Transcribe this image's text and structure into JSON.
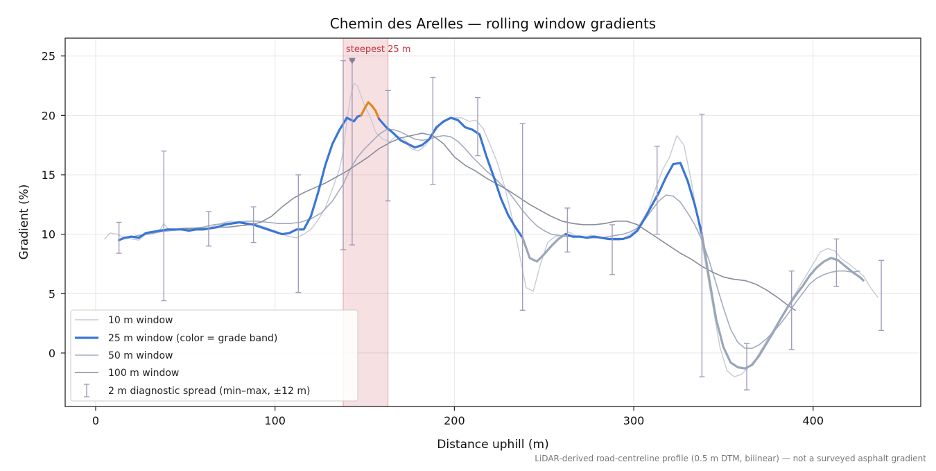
{
  "chart_data": {
    "type": "line",
    "title": "Chemin des Arelles — rolling window gradients",
    "xlabel": "Distance uphill (m)",
    "ylabel": "Gradient (%)",
    "xlim": [
      -17,
      460
    ],
    "ylim": [
      -4.5,
      26.5
    ],
    "xticks": [
      0,
      100,
      200,
      300,
      400
    ],
    "yticks": [
      0,
      5,
      10,
      15,
      20,
      25
    ],
    "grid": true,
    "legend_position": "lower-left",
    "footnote": "LiDAR-derived road-centreline profile (0.5 m DTM, bilinear) — not a surveyed asphalt gradient",
    "annotation": {
      "label": "steepest 25 m",
      "marker_x": 143,
      "marker_y": 24.6,
      "band_x": [
        138,
        163
      ],
      "color": "#c8323c"
    },
    "legend": [
      {
        "key": "w10",
        "label": "10 m window"
      },
      {
        "key": "w25",
        "label": "25 m window (color = grade band)"
      },
      {
        "key": "w50",
        "label": "50 m window"
      },
      {
        "key": "w100",
        "label": "100 m window"
      },
      {
        "key": "spread",
        "label": "2 m diagnostic spread (min–max, ±12 m)"
      }
    ],
    "series": [
      {
        "key": "w10",
        "name": "10 m window",
        "color": "#c5cad5",
        "x": [
          5,
          8,
          12,
          16,
          20,
          24,
          28,
          32,
          36,
          38,
          40,
          44,
          48,
          52,
          56,
          60,
          64,
          68,
          72,
          76,
          80,
          84,
          88,
          92,
          96,
          100,
          104,
          108,
          112,
          116,
          120,
          124,
          128,
          132,
          136,
          138,
          140,
          142,
          144,
          146,
          148,
          150,
          152,
          154,
          156,
          160,
          164,
          168,
          172,
          176,
          180,
          184,
          188,
          192,
          196,
          200,
          204,
          208,
          212,
          216,
          220,
          224,
          228,
          232,
          236,
          240,
          244,
          248,
          252,
          256,
          260,
          264,
          268,
          272,
          276,
          280,
          284,
          288,
          292,
          296,
          300,
          304,
          308,
          312,
          316,
          320,
          324,
          328,
          332,
          336,
          340,
          344,
          348,
          352,
          356,
          360,
          364,
          368,
          372,
          376,
          380,
          384,
          388,
          392,
          396,
          400,
          404,
          408,
          412,
          416,
          420,
          424,
          428,
          432,
          436
        ],
        "y": [
          9.6,
          10.1,
          10.0,
          9.7,
          9.6,
          9.5,
          10.0,
          10.2,
          10.4,
          10.9,
          10.5,
          10.3,
          10.5,
          10.4,
          10.5,
          10.4,
          10.6,
          10.8,
          11.0,
          11.1,
          11.0,
          10.8,
          10.9,
          10.7,
          10.5,
          10.2,
          10.0,
          9.8,
          9.7,
          10.0,
          10.4,
          11.2,
          12.2,
          13.8,
          15.5,
          17.0,
          19.5,
          21.5,
          22.7,
          22.5,
          21.6,
          20.8,
          20.2,
          19.5,
          18.6,
          18.0,
          17.8,
          18.3,
          18.0,
          17.2,
          17.0,
          17.5,
          18.4,
          19.2,
          19.6,
          19.8,
          19.8,
          19.5,
          19.6,
          18.9,
          17.5,
          16.0,
          14.0,
          11.5,
          8.5,
          5.5,
          5.2,
          7.5,
          9.3,
          9.8,
          9.9,
          10.2,
          9.8,
          9.7,
          9.9,
          9.8,
          9.6,
          9.5,
          9.5,
          9.8,
          10.2,
          11.0,
          12.0,
          13.8,
          15.4,
          16.5,
          18.3,
          17.5,
          14.5,
          11.0,
          7.5,
          4.0,
          0.5,
          -1.5,
          -2.0,
          -1.8,
          -1.2,
          -0.5,
          0.5,
          1.5,
          2.5,
          3.5,
          4.5,
          5.5,
          6.5,
          7.5,
          8.5,
          8.8,
          8.6,
          7.9,
          7.5,
          7.0,
          6.5,
          5.5,
          4.7
        ]
      },
      {
        "key": "w50",
        "name": "50 m window",
        "color": "#a2abbf",
        "x": [
          13,
          18,
          24,
          30,
          36,
          42,
          48,
          54,
          60,
          66,
          72,
          78,
          84,
          90,
          96,
          102,
          108,
          114,
          120,
          126,
          132,
          138,
          142,
          146,
          150,
          154,
          158,
          162,
          166,
          170,
          174,
          178,
          182,
          186,
          190,
          194,
          198,
          202,
          206,
          210,
          214,
          218,
          222,
          226,
          230,
          234,
          238,
          242,
          246,
          250,
          254,
          258,
          262,
          266,
          270,
          274,
          278,
          282,
          286,
          290,
          294,
          298,
          302,
          306,
          310,
          314,
          318,
          322,
          326,
          330,
          334,
          338,
          342,
          346,
          350,
          354,
          358,
          362,
          366,
          370,
          374,
          378,
          382,
          386,
          390,
          394,
          398,
          402,
          406,
          410,
          414,
          418,
          422,
          426
        ],
        "y": [
          9.5,
          9.7,
          9.9,
          10.0,
          10.2,
          10.3,
          10.4,
          10.5,
          10.6,
          10.8,
          10.9,
          11.0,
          11.1,
          11.1,
          11.0,
          10.9,
          10.9,
          11.0,
          11.3,
          11.8,
          12.8,
          14.2,
          15.5,
          16.5,
          17.2,
          17.8,
          18.4,
          18.8,
          18.8,
          18.6,
          18.3,
          18.0,
          17.9,
          18.0,
          18.2,
          18.3,
          18.2,
          17.8,
          17.2,
          16.5,
          15.9,
          15.3,
          14.8,
          14.2,
          13.6,
          12.8,
          12.0,
          11.3,
          10.7,
          10.3,
          10.0,
          9.9,
          9.8,
          9.8,
          9.8,
          9.7,
          9.7,
          9.7,
          9.8,
          9.9,
          10.0,
          10.2,
          10.5,
          11.2,
          12.0,
          12.8,
          13.3,
          13.2,
          12.7,
          11.8,
          10.8,
          9.5,
          7.8,
          5.8,
          3.8,
          2.0,
          0.9,
          0.4,
          0.4,
          0.7,
          1.2,
          1.8,
          2.5,
          3.3,
          4.2,
          5.0,
          5.8,
          6.3,
          6.6,
          6.8,
          6.9,
          6.9,
          6.8,
          6.9
        ]
      },
      {
        "key": "w100",
        "name": "100 m window",
        "color": "#868c9a",
        "x": [
          38,
          44,
          50,
          56,
          62,
          68,
          74,
          80,
          86,
          92,
          98,
          104,
          110,
          116,
          122,
          128,
          134,
          140,
          146,
          152,
          158,
          164,
          170,
          176,
          182,
          188,
          194,
          200,
          206,
          212,
          218,
          224,
          230,
          236,
          242,
          248,
          254,
          260,
          266,
          272,
          278,
          284,
          290,
          296,
          302,
          308,
          314,
          320,
          326,
          332,
          338,
          344,
          350,
          356,
          362,
          368,
          374,
          380,
          386,
          390
        ],
        "y": [
          10.4,
          10.4,
          10.5,
          10.5,
          10.5,
          10.6,
          10.6,
          10.7,
          10.8,
          11.0,
          11.5,
          12.3,
          13.0,
          13.5,
          13.9,
          14.3,
          14.8,
          15.3,
          15.9,
          16.5,
          17.2,
          17.7,
          18.1,
          18.3,
          18.5,
          18.3,
          17.6,
          16.5,
          15.8,
          15.3,
          14.7,
          14.2,
          13.7,
          13.1,
          12.5,
          12.0,
          11.5,
          11.1,
          10.9,
          10.8,
          10.8,
          10.9,
          11.1,
          11.1,
          10.8,
          10.2,
          9.6,
          9.0,
          8.4,
          7.9,
          7.3,
          6.8,
          6.4,
          6.2,
          6.1,
          5.8,
          5.3,
          4.7,
          4.0,
          3.6
        ]
      },
      {
        "key": "w25",
        "name": "25 m window (color = grade band)",
        "segments": [
          {
            "color": "#3a76d6",
            "x": [
              13,
              16,
              20,
              24,
              28,
              32,
              36,
              40,
              44,
              48,
              52,
              56,
              60,
              64,
              68,
              72,
              76,
              80,
              84,
              88,
              92,
              96,
              100,
              104,
              108,
              112,
              116,
              120,
              124,
              128,
              132,
              136,
              140,
              144,
              146,
              148
            ],
            "y": [
              9.5,
              9.7,
              9.8,
              9.7,
              10.1,
              10.2,
              10.3,
              10.4,
              10.4,
              10.4,
              10.3,
              10.4,
              10.4,
              10.5,
              10.6,
              10.8,
              10.9,
              11.0,
              10.9,
              10.8,
              10.6,
              10.4,
              10.2,
              10.0,
              10.1,
              10.4,
              10.4,
              11.5,
              13.5,
              15.8,
              17.6,
              18.8,
              19.8,
              19.5,
              19.9,
              20.0
            ]
          },
          {
            "color": "#e0861f",
            "x": [
              148,
              150,
              152,
              154,
              156,
              158
            ],
            "y": [
              20.0,
              20.6,
              21.1,
              20.8,
              20.4,
              19.7
            ]
          },
          {
            "color": "#3a76d6",
            "x": [
              158,
              162,
              166,
              170,
              174,
              178,
              182,
              186,
              190,
              194,
              198,
              202,
              206,
              210,
              214,
              218,
              222,
              226,
              230,
              234,
              238
            ],
            "y": [
              19.7,
              19.0,
              18.5,
              17.9,
              17.6,
              17.3,
              17.5,
              18.0,
              19.0,
              19.5,
              19.8,
              19.6,
              19.0,
              18.8,
              18.4,
              16.5,
              14.8,
              13.0,
              11.6,
              10.6,
              9.7
            ]
          },
          {
            "color": "#9aa6b8",
            "x": [
              238,
              242,
              246,
              250,
              254,
              258,
              262
            ],
            "y": [
              9.7,
              8.0,
              7.7,
              8.3,
              9.0,
              9.6,
              10.0
            ]
          },
          {
            "color": "#3a76d6",
            "x": [
              262,
              266,
              270,
              274,
              278,
              282,
              286,
              290,
              294,
              298,
              302,
              306,
              310,
              314,
              318,
              322,
              326,
              330,
              334,
              338
            ],
            "y": [
              10.0,
              9.8,
              9.8,
              9.7,
              9.8,
              9.7,
              9.6,
              9.6,
              9.6,
              9.8,
              10.3,
              11.3,
              12.4,
              13.5,
              14.8,
              15.9,
              16.0,
              14.5,
              12.5,
              10.0
            ]
          },
          {
            "color": "#9aa6b8",
            "x": [
              338,
              342,
              346,
              350,
              354,
              358,
              362,
              366,
              370,
              374,
              378,
              382,
              386,
              390,
              394,
              398,
              402,
              406,
              410,
              414,
              418,
              422,
              426,
              428
            ],
            "y": [
              10.0,
              6.3,
              2.8,
              0.5,
              -0.8,
              -1.2,
              -1.3,
              -1.0,
              -0.2,
              0.8,
              1.8,
              2.9,
              3.9,
              4.8,
              5.6,
              6.5,
              7.2,
              7.7,
              8.0,
              7.8,
              7.3,
              6.8,
              6.4,
              6.1
            ]
          }
        ]
      }
    ],
    "error_bars": {
      "name": "2 m diagnostic spread (min–max, ±12 m)",
      "color": "#a39bbb",
      "x": [
        13,
        38,
        63,
        88,
        113,
        138,
        143,
        163,
        188,
        213,
        238,
        263,
        288,
        313,
        338,
        363,
        388,
        413,
        438
      ],
      "y": [
        9.5,
        10.4,
        10.4,
        10.8,
        10.3,
        15.8,
        19.6,
        19.5,
        18.8,
        18.9,
        9.7,
        9.9,
        9.6,
        13.2,
        9.9,
        -1.3,
        3.0,
        7.8,
        5.0
      ],
      "ymin": [
        8.4,
        4.4,
        9.0,
        9.3,
        5.1,
        8.7,
        9.1,
        12.8,
        14.2,
        16.6,
        3.6,
        8.5,
        6.6,
        10.0,
        -2.0,
        -3.1,
        0.3,
        5.6,
        1.9
      ],
      "ymax": [
        11.0,
        17.0,
        11.9,
        12.3,
        15.0,
        24.6,
        24.6,
        22.1,
        23.2,
        21.5,
        19.3,
        12.2,
        10.8,
        17.4,
        20.1,
        0.8,
        6.9,
        9.6,
        7.8
      ]
    }
  }
}
